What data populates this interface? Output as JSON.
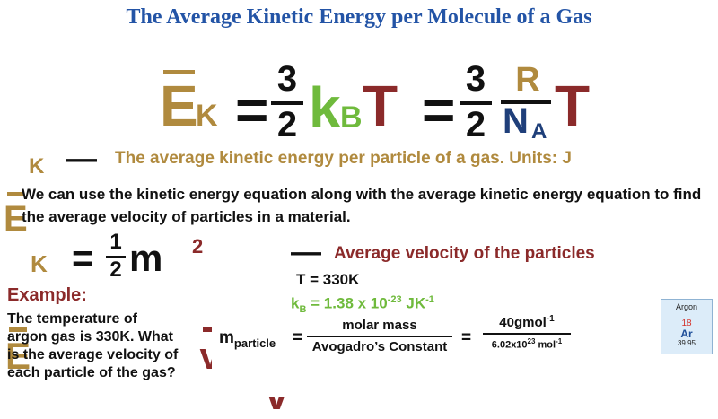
{
  "title": "The Average Kinetic Energy per Molecule of a Gas",
  "colors": {
    "title": "#2354a6",
    "energy": "#b08a3e",
    "kB": "#6fba3c",
    "temperature": "#8b2a2a",
    "R": "#b08a3e",
    "NA": "#1f3f7a"
  },
  "main_equation": {
    "ek": "E",
    "ek_sub": "K",
    "equals": "=",
    "num1": "3",
    "den1": "2",
    "kb": "k",
    "kb_sub": "B",
    "t1": "T",
    "num2": "3",
    "den2": "2",
    "r": "R",
    "na": "N",
    "na_sub": "A",
    "t2": "T"
  },
  "definition": {
    "symbol": "E",
    "symbol_sub": "K",
    "dash": "—",
    "text": "The average kinetic energy per particle of a gas. Units: J"
  },
  "intro_text": [
    "We can use the kinetic energy equation along with the average kinetic energy equation to find",
    "the average velocity of particles in a material."
  ],
  "ke_equation": {
    "ek": "E",
    "ek_sub": "K",
    "equals": "=",
    "num": "1",
    "den": "2",
    "m": "m",
    "v": "v",
    "exp": "2"
  },
  "velocity_definition": {
    "symbol": "v",
    "dash": "—",
    "text": "Average velocity of the particles"
  },
  "example": {
    "heading": "Example:",
    "lines": [
      "The temperature of",
      "argon gas is 330K. What",
      "is the average velocity of",
      "each particle of the gas?"
    ]
  },
  "given": {
    "temperature": "T = 330K",
    "kb_label": "k",
    "kb_sub": "B",
    "kb_value": "= 1.38 x 10",
    "kb_exp": "-23",
    "kb_unit": "JK",
    "kb_unit_exp": "-1"
  },
  "mass_equation": {
    "lhs": "m",
    "lhs_sub": "particle",
    "equals1": "=",
    "num": "molar mass",
    "den": "Avogadro’s Constant",
    "equals2": "=",
    "num_value": "40gmol",
    "num_exp": "-1",
    "den_value": "6.02x10",
    "den_exp": "23",
    "den_unit": "mol",
    "den_unit_exp": "-1"
  },
  "element_tile": {
    "name": "Argon",
    "number": "18",
    "symbol": "Ar",
    "mass": "39.95"
  }
}
